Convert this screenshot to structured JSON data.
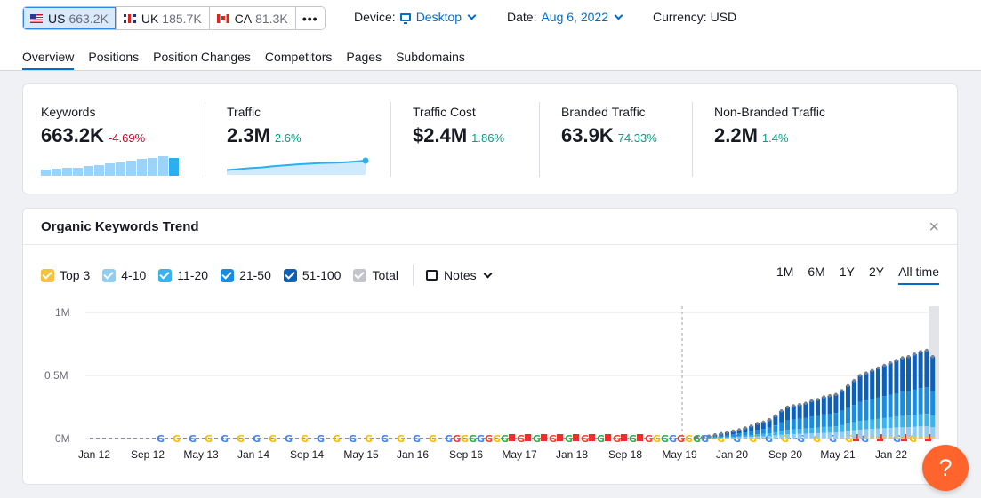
{
  "databases": [
    {
      "code": "US",
      "count": "663.2K",
      "flag": "us",
      "active": true
    },
    {
      "code": "UK",
      "count": "185.7K",
      "flag": "uk",
      "active": false
    },
    {
      "code": "CA",
      "count": "81.3K",
      "flag": "ca",
      "active": false
    }
  ],
  "more_label": "•••",
  "device": {
    "label": "Device:",
    "value": "Desktop"
  },
  "date": {
    "label": "Date:",
    "value": "Aug 6, 2022"
  },
  "currency": {
    "label": "Currency: USD"
  },
  "tabs": [
    "Overview",
    "Positions",
    "Position Changes",
    "Competitors",
    "Pages",
    "Subdomains"
  ],
  "active_tab": "Overview",
  "metrics": {
    "keywords": {
      "label": "Keywords",
      "value": "663.2K",
      "change": "-4.69%"
    },
    "traffic": {
      "label": "Traffic",
      "value": "2.3M",
      "change": "2.6%"
    },
    "traffic_cost": {
      "label": "Traffic Cost",
      "value": "$2.4M",
      "change": "1.86%"
    },
    "branded": {
      "label": "Branded Traffic",
      "value": "63.9K",
      "change": "74.33%"
    },
    "non_branded": {
      "label": "Non-Branded Traffic",
      "value": "2.2M",
      "change": "1.4%"
    }
  },
  "keyword_sparkline": [
    0.33,
    0.36,
    0.4,
    0.43,
    0.48,
    0.55,
    0.62,
    0.7,
    0.78,
    0.86,
    0.92,
    1.0,
    0.9
  ],
  "traffic_sparkline": [
    0.25,
    0.32,
    0.4,
    0.46,
    0.55,
    0.62,
    0.7,
    0.75,
    0.8,
    0.83,
    0.86,
    0.92,
    1.0
  ],
  "trend": {
    "title": "Organic Keywords Trend",
    "close": "×",
    "legend": [
      {
        "label": "Top 3",
        "color": "#f5c33b"
      },
      {
        "label": "4-10",
        "color": "#8fcdf5"
      },
      {
        "label": "11-20",
        "color": "#3ab2f0"
      },
      {
        "label": "21-50",
        "color": "#1a8ce0"
      },
      {
        "label": "51-100",
        "color": "#0d5fb8"
      },
      {
        "label": "Total",
        "color": "#c2c4cc"
      }
    ],
    "notes_label": "Notes",
    "ranges": [
      "1M",
      "6M",
      "1Y",
      "2Y",
      "All time"
    ],
    "active_range": "All time"
  },
  "chart_data": {
    "type": "bar",
    "title": "Organic Keywords Trend",
    "y_ticks": [
      "1M",
      "0.5M",
      "0M"
    ],
    "ylim": [
      0,
      1000000
    ],
    "x_ticks": [
      "Jan 12",
      "Sep 12",
      "May 13",
      "Jan 14",
      "Sep 14",
      "May 15",
      "Jan 16",
      "Sep 16",
      "May 17",
      "Jan 18",
      "Sep 18",
      "May 19",
      "Jan 20",
      "Sep 20",
      "May 21",
      "Jan 22"
    ],
    "series_order": [
      "Top 3",
      "4-10",
      "11-20",
      "21-50",
      "51-100"
    ],
    "recent_totals": [
      10000,
      15000,
      20000,
      30000,
      40000,
      50000,
      60000,
      70000,
      85000,
      100000,
      120000,
      130000,
      150000,
      180000,
      220000,
      250000,
      260000,
      270000,
      280000,
      300000,
      310000,
      330000,
      340000,
      350000,
      380000,
      420000,
      460000,
      500000,
      520000,
      540000,
      560000,
      580000,
      600000,
      620000,
      640000,
      650000,
      670000,
      690000,
      700000,
      650000
    ],
    "grid": true,
    "legend_position": "top-left"
  },
  "help_label": "?"
}
